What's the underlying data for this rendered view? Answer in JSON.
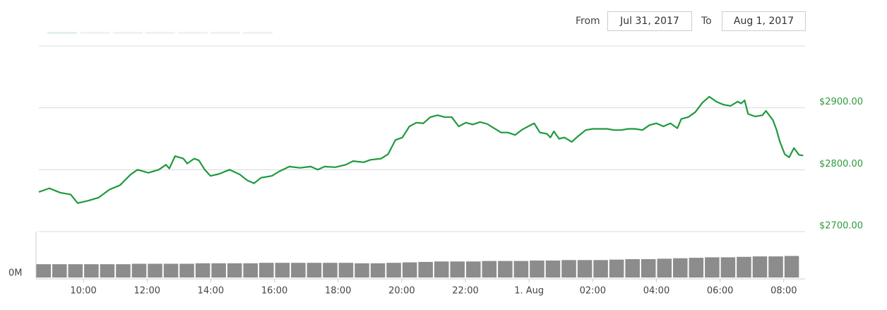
{
  "controls": {
    "from_label": "From",
    "from_value": "Jul 31, 2017",
    "to_label": "To",
    "to_value": "Aug 1, 2017"
  },
  "chart_data": {
    "type": "line",
    "color": "#1f9a3c",
    "x": [
      8.6,
      8.93,
      9.27,
      9.6,
      9.82,
      10.15,
      10.48,
      10.82,
      11.15,
      11.48,
      11.7,
      12.04,
      12.37,
      12.59,
      12.7,
      12.88,
      13.14,
      13.26,
      13.48,
      13.63,
      13.81,
      13.99,
      14.25,
      14.59,
      14.92,
      15.14,
      15.36,
      15.58,
      15.92,
      16.14,
      16.47,
      16.8,
      17.14,
      17.36,
      17.58,
      17.91,
      18.24,
      18.47,
      18.8,
      19.02,
      19.35,
      19.57,
      19.8,
      20.02,
      20.24,
      20.46,
      20.68,
      20.9,
      21.13,
      21.35,
      21.57,
      21.79,
      22.01,
      22.23,
      22.46,
      22.68,
      22.9,
      23.12,
      23.34,
      23.56,
      23.79,
      24.01,
      24.16,
      24.34,
      24.56,
      24.67,
      24.78,
      24.94,
      25.11,
      25.34,
      25.56,
      25.78,
      26.0,
      26.22,
      26.45,
      26.67,
      26.89,
      27.11,
      27.33,
      27.56,
      27.78,
      28.0,
      28.22,
      28.44,
      28.66,
      28.78,
      29.0,
      29.22,
      29.44,
      29.66,
      29.88,
      30.11,
      30.33,
      30.55,
      30.66,
      30.77,
      30.88,
      31.1,
      31.33,
      31.44,
      31.66,
      31.77,
      31.88,
      32.03,
      32.17,
      32.32,
      32.48,
      32.61
    ],
    "values": [
      2764,
      2770,
      2763,
      2760,
      2746,
      2750,
      2755,
      2768,
      2775,
      2792,
      2800,
      2795,
      2800,
      2808,
      2802,
      2822,
      2818,
      2810,
      2818,
      2815,
      2800,
      2790,
      2793,
      2800,
      2792,
      2783,
      2778,
      2787,
      2790,
      2797,
      2805,
      2803,
      2805,
      2800,
      2805,
      2804,
      2808,
      2814,
      2812,
      2816,
      2818,
      2825,
      2848,
      2852,
      2870,
      2876,
      2875,
      2885,
      2888,
      2885,
      2885,
      2870,
      2876,
      2873,
      2877,
      2874,
      2867,
      2860,
      2860,
      2856,
      2865,
      2871,
      2875,
      2860,
      2858,
      2852,
      2862,
      2850,
      2852,
      2845,
      2855,
      2864,
      2866,
      2866,
      2866,
      2864,
      2864,
      2866,
      2866,
      2864,
      2872,
      2875,
      2870,
      2875,
      2867,
      2882,
      2885,
      2893,
      2908,
      2918,
      2910,
      2905,
      2903,
      2910,
      2907,
      2912,
      2890,
      2886,
      2888,
      2895,
      2880,
      2865,
      2845,
      2825,
      2820,
      2835,
      2824,
      2823
    ],
    "xlim": [
      8.6,
      32.67
    ],
    "xticks": [
      {
        "value": 10,
        "label": "10:00"
      },
      {
        "value": 12,
        "label": "12:00"
      },
      {
        "value": 14,
        "label": "14:00"
      },
      {
        "value": 16,
        "label": "16:00"
      },
      {
        "value": 18,
        "label": "18:00"
      },
      {
        "value": 20,
        "label": "20:00"
      },
      {
        "value": 22,
        "label": "22:00"
      },
      {
        "value": 24,
        "label": "1. Aug"
      },
      {
        "value": 26,
        "label": "02:00"
      },
      {
        "value": 28,
        "label": "04:00"
      },
      {
        "value": 30,
        "label": "06:00"
      },
      {
        "value": 32,
        "label": "08:00"
      }
    ],
    "ylim": [
      2700,
      3000
    ],
    "yticks": [
      {
        "value": 2700,
        "label": "$2700.00"
      },
      {
        "value": 2800,
        "label": "$2800.00"
      },
      {
        "value": 2900,
        "label": "$2900.00"
      }
    ],
    "grid": true,
    "volume": {
      "color": "#8c8c8c",
      "x": [
        8.75,
        9.25,
        9.75,
        10.25,
        10.75,
        11.25,
        11.75,
        12.25,
        12.75,
        13.25,
        13.75,
        14.25,
        14.75,
        15.25,
        15.75,
        16.25,
        16.75,
        17.25,
        17.75,
        18.25,
        18.75,
        19.25,
        19.75,
        20.25,
        20.75,
        21.25,
        21.75,
        22.25,
        22.75,
        23.25,
        23.75,
        24.25,
        24.75,
        25.25,
        25.75,
        26.25,
        26.75,
        27.25,
        27.75,
        28.25,
        28.75,
        29.25,
        29.75,
        30.25,
        30.75,
        31.25,
        31.75,
        32.25
      ],
      "values": [
        29,
        29,
        29,
        29,
        29,
        29,
        30,
        30,
        30,
        30,
        31,
        31,
        31,
        31,
        32,
        32,
        32,
        32,
        32,
        32,
        31,
        31,
        32,
        33,
        34,
        35,
        35,
        35,
        36,
        36,
        36,
        37,
        37,
        38,
        38,
        38,
        39,
        40,
        40,
        41,
        42,
        43,
        44,
        44,
        45,
        46,
        46,
        47
      ],
      "ylim": [
        0,
        100
      ],
      "yticks": [
        {
          "value": 0,
          "label": "0M"
        }
      ]
    }
  }
}
